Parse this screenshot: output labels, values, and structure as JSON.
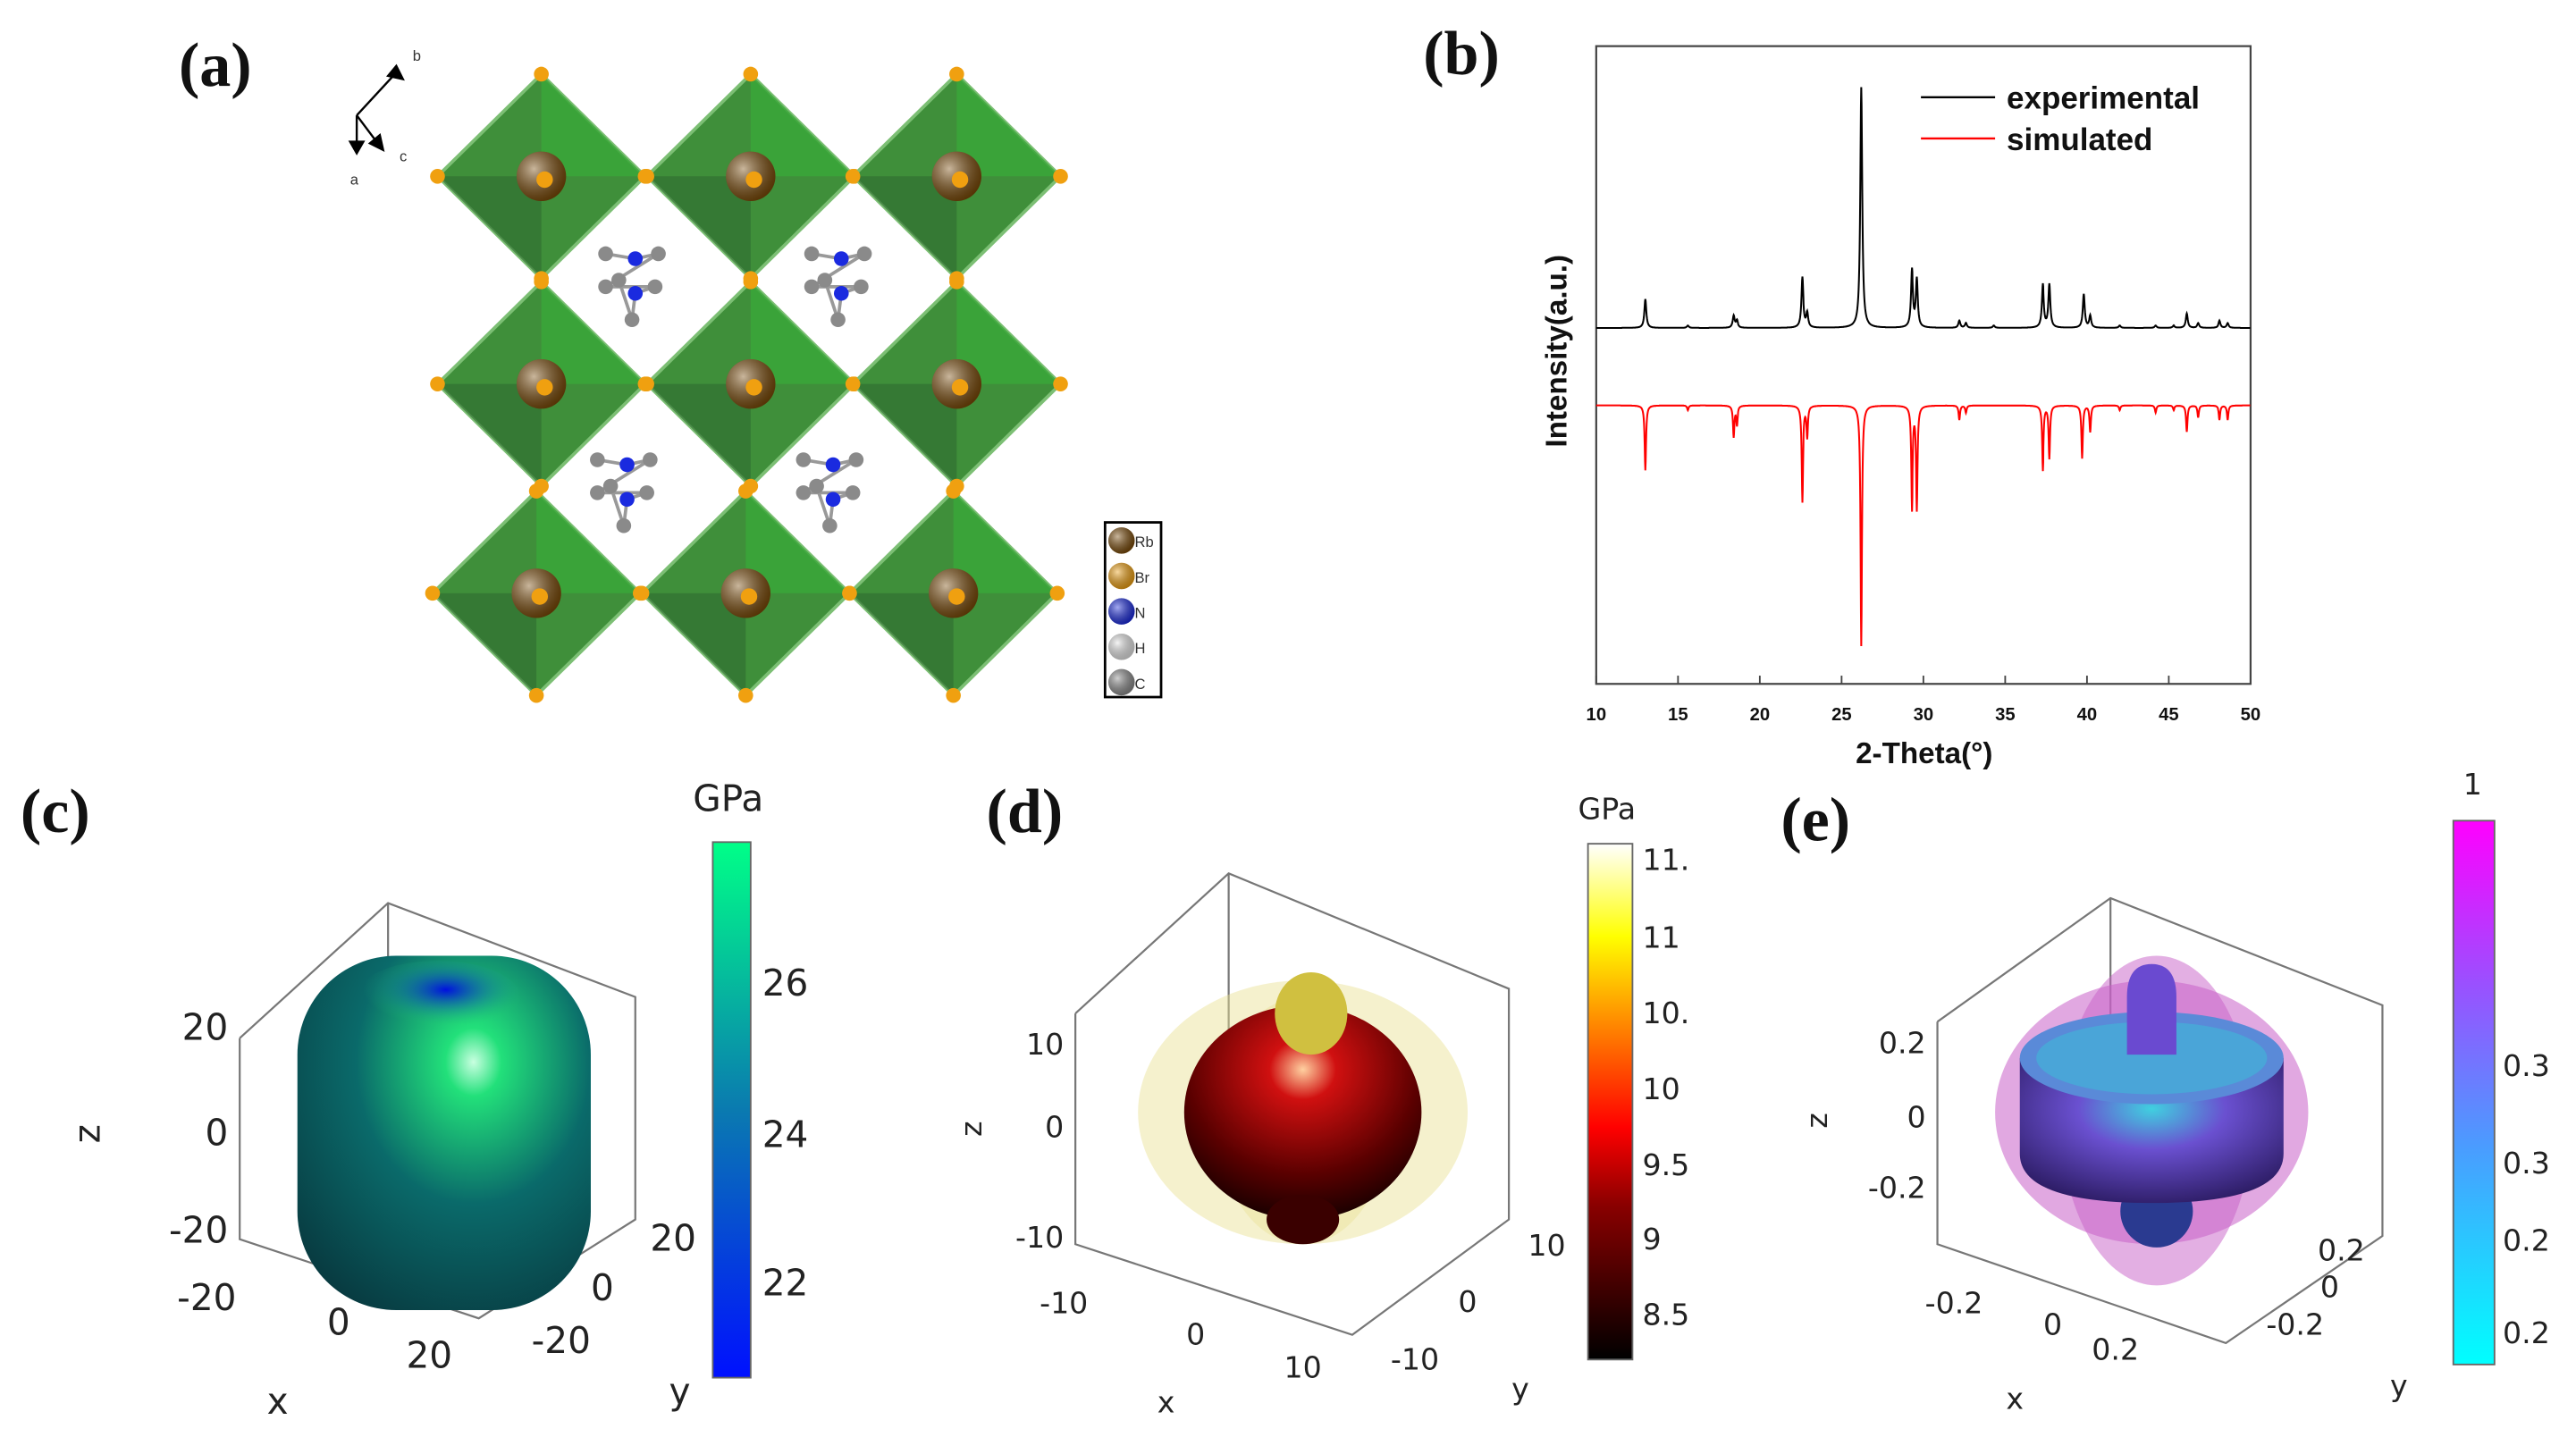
{
  "panels": {
    "a": {
      "label": "(a)",
      "axes": {
        "a": "a",
        "b": "b",
        "c": "c"
      },
      "legend": [
        "Rb",
        "Br",
        "N",
        "H",
        "C"
      ],
      "colors": {
        "octahedron": "#3f8f3a",
        "Rb": "#7a4a08",
        "Br": "#f0a010",
        "N": "#1a2adf",
        "H": "#e6e6e6",
        "C": "#8a8a8a"
      }
    },
    "b": {
      "label": "(b)"
    },
    "c": {
      "label": "(c)",
      "unit": "GPa",
      "colorbar_ticks": [
        "26",
        "24",
        "22"
      ],
      "z_ticks": [
        "20",
        "0",
        "-20"
      ],
      "x_ticks": [
        "-20",
        "0",
        "20"
      ],
      "y_ticks": [
        "20",
        "0",
        "-20"
      ],
      "x_label": "x",
      "y_label": "y",
      "z_label": "z"
    },
    "d": {
      "label": "(d)",
      "unit": "GPa",
      "colorbar_ticks": [
        "11.",
        "11",
        "10.",
        "10",
        "9.5",
        "9",
        "8.5"
      ],
      "z_ticks": [
        "10",
        "0",
        "-10"
      ],
      "x_ticks": [
        "-10",
        "0",
        "10"
      ],
      "y_ticks": [
        "10",
        "0",
        "-10"
      ],
      "x_label": "x",
      "y_label": "y",
      "z_label": "z"
    },
    "e": {
      "label": "(e)",
      "unit": "1",
      "colorbar_ticks": [
        "0.3",
        "0.3",
        "0.2",
        "0.2"
      ],
      "z_ticks": [
        "0.2",
        "0",
        "-0.2"
      ],
      "x_ticks": [
        "-0.2",
        "0",
        "0.2"
      ],
      "y_ticks": [
        "0.2",
        "0",
        "-0.2"
      ],
      "x_label": "x",
      "y_label": "y",
      "z_label": "z"
    }
  },
  "chart_data": {
    "type": "line",
    "title": "",
    "xlabel": "2-Theta(°)",
    "ylabel": "Intensity(a.u.)",
    "xlim": [
      10,
      50
    ],
    "x_ticks": [
      "10",
      "15",
      "20",
      "25",
      "30",
      "35",
      "40",
      "45",
      "50"
    ],
    "legend_position": "top-right",
    "series": [
      {
        "name": "experimental",
        "color": "#000000",
        "direction": "up",
        "peaks": [
          [
            13.0,
            0.12
          ],
          [
            15.6,
            0.01
          ],
          [
            18.4,
            0.05
          ],
          [
            18.6,
            0.03
          ],
          [
            22.6,
            0.21
          ],
          [
            22.9,
            0.06
          ],
          [
            26.2,
            1.0
          ],
          [
            29.3,
            0.24
          ],
          [
            29.6,
            0.2
          ],
          [
            32.2,
            0.03
          ],
          [
            32.6,
            0.02
          ],
          [
            34.3,
            0.01
          ],
          [
            37.3,
            0.18
          ],
          [
            37.7,
            0.18
          ],
          [
            39.8,
            0.14
          ],
          [
            40.2,
            0.05
          ],
          [
            42.0,
            0.01
          ],
          [
            44.2,
            0.01
          ],
          [
            45.3,
            0.01
          ],
          [
            46.1,
            0.06
          ],
          [
            46.8,
            0.02
          ],
          [
            48.1,
            0.03
          ],
          [
            48.6,
            0.02
          ]
        ]
      },
      {
        "name": "simulated",
        "color": "#ff0000",
        "direction": "down",
        "peaks": [
          [
            13.0,
            0.27
          ],
          [
            15.6,
            0.02
          ],
          [
            18.4,
            0.13
          ],
          [
            18.6,
            0.08
          ],
          [
            22.6,
            0.4
          ],
          [
            22.9,
            0.13
          ],
          [
            26.2,
            1.0
          ],
          [
            29.3,
            0.43
          ],
          [
            29.6,
            0.43
          ],
          [
            32.2,
            0.06
          ],
          [
            32.6,
            0.03
          ],
          [
            37.3,
            0.27
          ],
          [
            37.7,
            0.22
          ],
          [
            39.7,
            0.22
          ],
          [
            40.2,
            0.11
          ],
          [
            42.0,
            0.02
          ],
          [
            44.2,
            0.03
          ],
          [
            45.3,
            0.02
          ],
          [
            46.1,
            0.11
          ],
          [
            46.8,
            0.05
          ],
          [
            48.1,
            0.06
          ],
          [
            48.6,
            0.06
          ]
        ]
      }
    ]
  }
}
